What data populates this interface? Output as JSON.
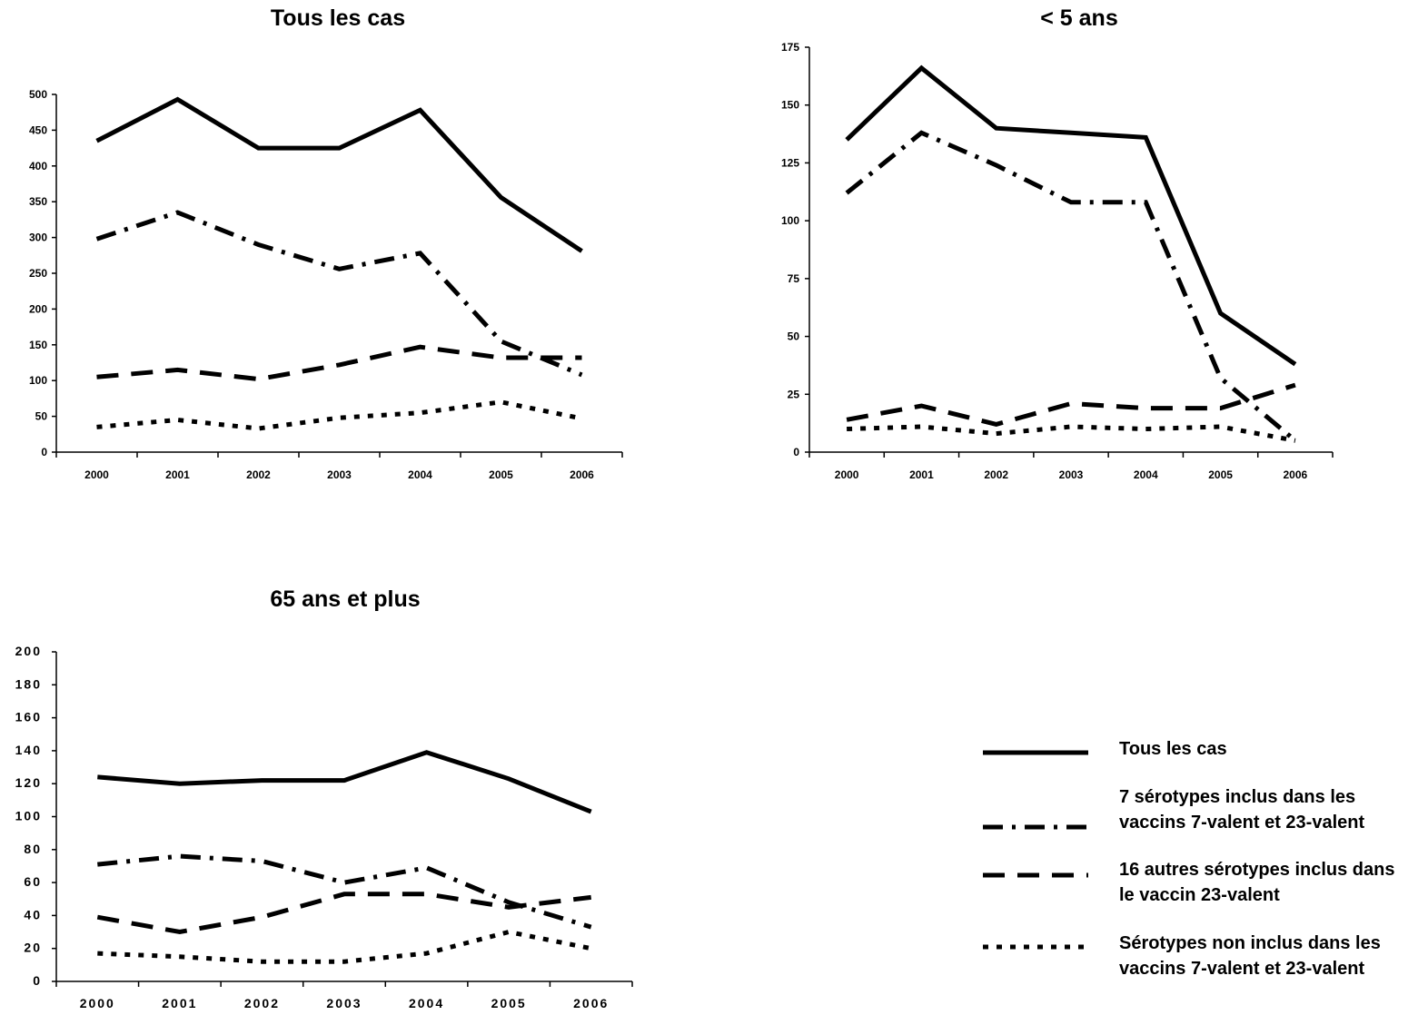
{
  "chart_data": [
    {
      "type": "line",
      "title": "Tous les cas",
      "categories": [
        "2000",
        "2001",
        "2002",
        "2003",
        "2004",
        "2005",
        "2006"
      ],
      "ylim": [
        0,
        500
      ],
      "yticks": [
        0,
        50,
        100,
        150,
        200,
        250,
        300,
        350,
        400,
        450,
        500
      ],
      "series": [
        {
          "name": "Tous les cas",
          "style": "solid",
          "values": [
            435,
            493,
            425,
            425,
            478,
            356,
            281
          ]
        },
        {
          "name": "7 sérotypes inclus dans les vaccins 7-valent et 23-valent",
          "style": "dashdot",
          "values": [
            298,
            335,
            290,
            256,
            278,
            155,
            108
          ]
        },
        {
          "name": "16 autres sérotypes inclus dans le vaccin 23-valent",
          "style": "dashed",
          "values": [
            105,
            115,
            102,
            122,
            147,
            132,
            132
          ]
        },
        {
          "name": "Sérotypes non inclus dans les vaccins 7-valent et 23-valent",
          "style": "dotted",
          "values": [
            35,
            45,
            33,
            48,
            55,
            70,
            47
          ]
        }
      ]
    },
    {
      "type": "line",
      "title": "< 5 ans",
      "categories": [
        "2000",
        "2001",
        "2002",
        "2003",
        "2004",
        "2005",
        "2006"
      ],
      "ylim": [
        0,
        175
      ],
      "yticks": [
        0,
        25,
        50,
        75,
        100,
        125,
        150,
        175
      ],
      "series": [
        {
          "name": "Tous les cas",
          "style": "solid",
          "values": [
            135,
            166,
            140,
            138,
            136,
            60,
            38
          ]
        },
        {
          "name": "7 sérotypes inclus dans les vaccins 7-valent et 23-valent",
          "style": "dashdot",
          "values": [
            112,
            138,
            124,
            108,
            108,
            32,
            5
          ]
        },
        {
          "name": "16 autres sérotypes inclus dans le vaccin 23-valent",
          "style": "dashed",
          "values": [
            14,
            20,
            12,
            21,
            19,
            19,
            29
          ]
        },
        {
          "name": "Sérotypes non inclus dans les vaccins 7-valent et 23-valent",
          "style": "dotted",
          "values": [
            10,
            11,
            8,
            11,
            10,
            11,
            5
          ]
        }
      ]
    },
    {
      "type": "line",
      "title": "65 ans et plus",
      "categories": [
        "2000",
        "2001",
        "2002",
        "2003",
        "2004",
        "2005",
        "2006"
      ],
      "ylim": [
        0,
        200
      ],
      "yticks": [
        0,
        20,
        40,
        60,
        80,
        100,
        120,
        140,
        160,
        180,
        200
      ],
      "series": [
        {
          "name": "Tous les cas",
          "style": "solid",
          "values": [
            124,
            120,
            122,
            122,
            139,
            123,
            103
          ]
        },
        {
          "name": "7 sérotypes inclus dans les vaccins 7-valent et 23-valent",
          "style": "dashdot",
          "values": [
            71,
            76,
            73,
            60,
            69,
            48,
            33
          ]
        },
        {
          "name": "16 autres sérotypes inclus dans le vaccin 23-valent",
          "style": "dashed",
          "values": [
            39,
            30,
            39,
            53,
            53,
            45,
            51
          ]
        },
        {
          "name": "Sérotypes non inclus dans les vaccins 7-valent et 23-valent",
          "style": "dotted",
          "values": [
            17,
            15,
            12,
            12,
            17,
            30,
            20
          ]
        }
      ]
    }
  ],
  "legend": {
    "items": [
      {
        "label_lines": [
          "Tous les cas"
        ],
        "style": "solid"
      },
      {
        "label_lines": [
          "7 sérotypes inclus dans les",
          "vaccins 7-valent et 23-valent"
        ],
        "style": "dashdot"
      },
      {
        "label_lines": [
          "16 autres sérotypes inclus dans",
          "le vaccin 23-valent"
        ],
        "style": "dashed"
      },
      {
        "label_lines": [
          "Sérotypes non inclus dans les",
          "vaccins 7-valent et 23-valent"
        ],
        "style": "dotted"
      }
    ]
  }
}
